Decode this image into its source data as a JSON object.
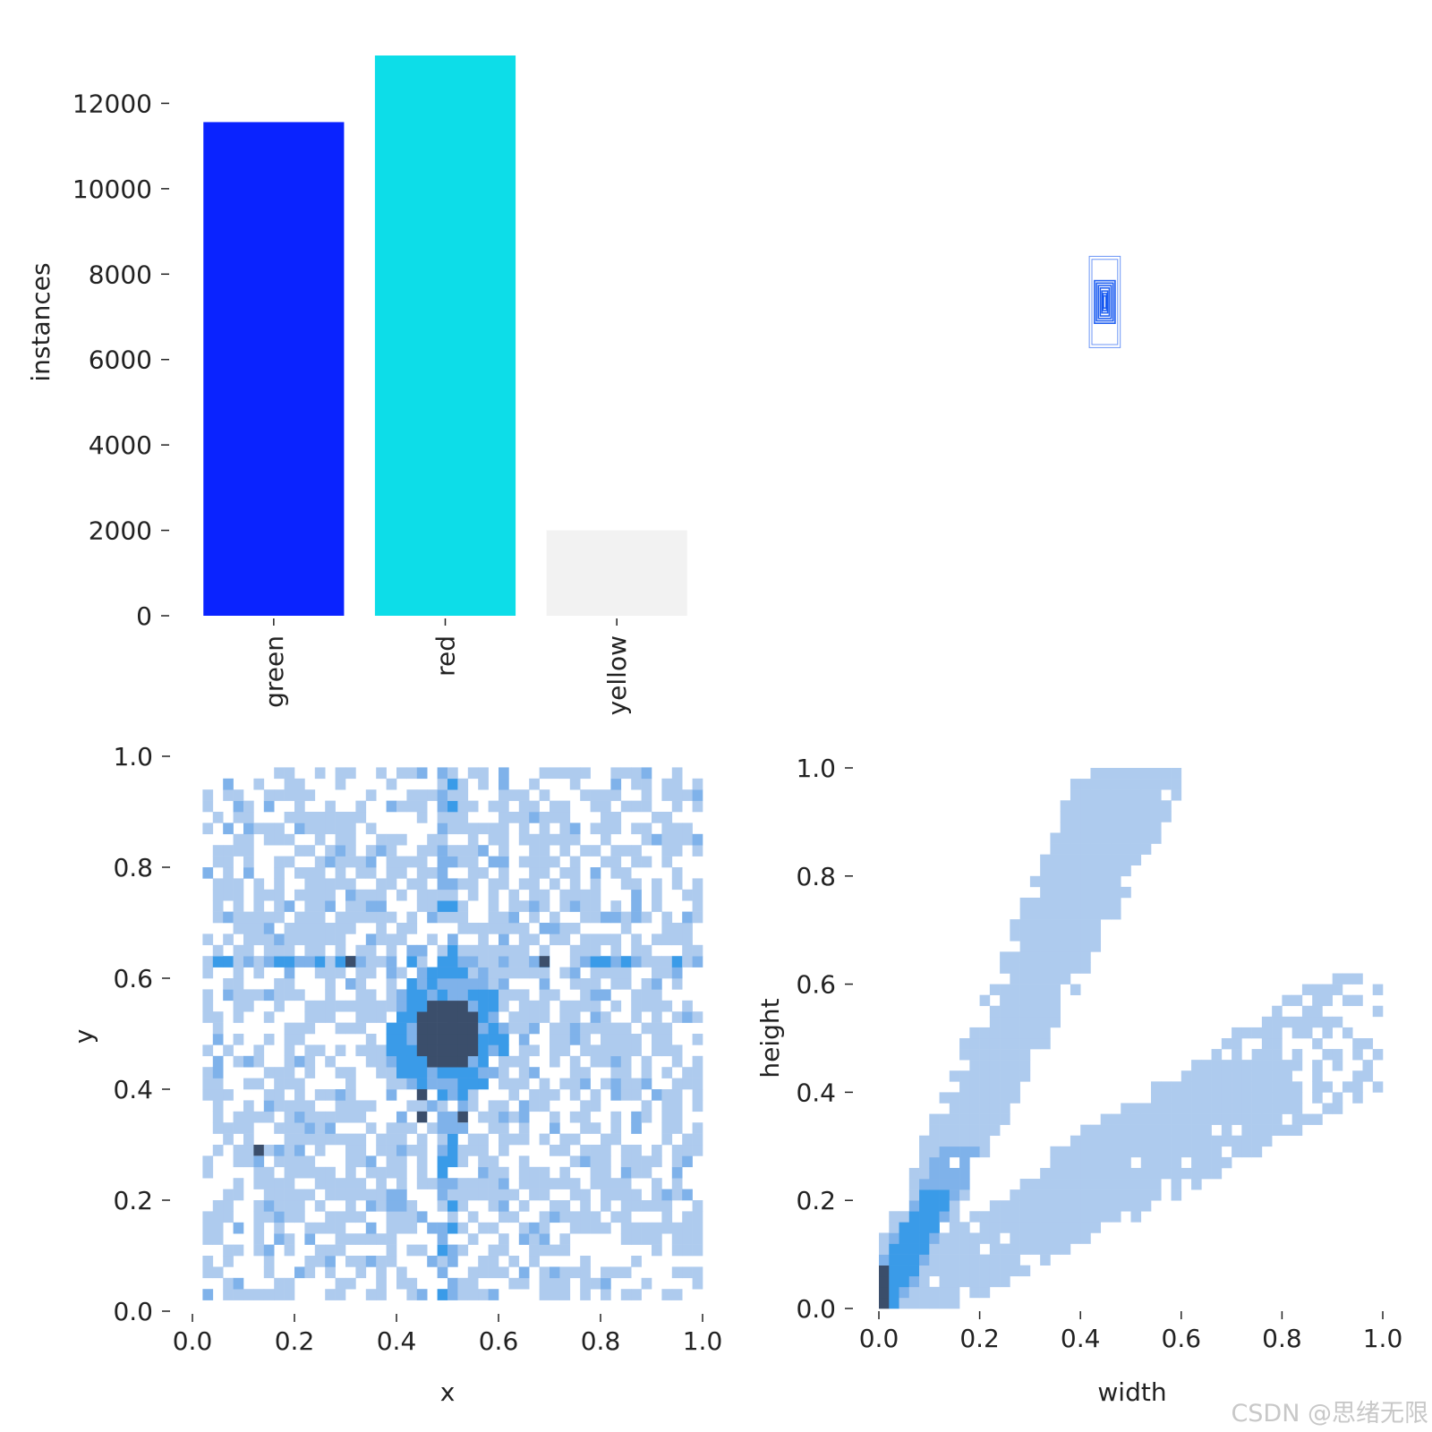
{
  "watermark": "CSDN @思绪无限",
  "chart_data": [
    {
      "type": "bar",
      "categories": [
        "green",
        "red",
        "yellow"
      ],
      "values": [
        11560,
        13120,
        2000
      ],
      "colors": [
        "#0a23ff",
        "#0ddde8",
        "#f2f2f2"
      ],
      "ylabel": "instances",
      "xlabel": "",
      "ylim": [
        0,
        13120
      ],
      "yticks": [
        0,
        2000,
        4000,
        6000,
        8000,
        10000,
        12000
      ],
      "ytick_labels": [
        "0",
        "2000",
        "4000",
        "6000",
        "8000",
        "10000",
        "12000"
      ]
    },
    {
      "type": "boxes",
      "description": "overlaid bounding-box outlines centered on a shared point",
      "boxes": [
        {
          "w": 0.048,
          "h": 0.15
        },
        {
          "w": 0.04,
          "h": 0.14
        },
        {
          "w": 0.032,
          "h": 0.07
        },
        {
          "w": 0.026,
          "h": 0.062
        },
        {
          "w": 0.02,
          "h": 0.054
        },
        {
          "w": 0.014,
          "h": 0.046
        },
        {
          "w": 0.009,
          "h": 0.036
        },
        {
          "w": 0.006,
          "h": 0.028
        },
        {
          "w": 0.004,
          "h": 0.02
        }
      ],
      "color": "#0a50f0"
    },
    {
      "type": "heatmap",
      "xlabel": "x",
      "ylabel": "y",
      "xlim": [
        0,
        1
      ],
      "ylim": [
        0,
        1
      ],
      "xticks": [
        "0.0",
        "0.2",
        "0.4",
        "0.6",
        "0.8",
        "1.0"
      ],
      "yticks": [
        "0.0",
        "0.2",
        "0.4",
        "0.6",
        "0.8",
        "1.0"
      ],
      "bins": 50,
      "description": "2D histogram of box centers, dense block near (0.5, 0.5)",
      "hotspots": [
        {
          "x": 0.5,
          "y": 0.5,
          "level": 3
        },
        {
          "x": 0.68,
          "y": 0.63,
          "level": 3
        },
        {
          "x": 0.3,
          "y": 0.63,
          "level": 3
        },
        {
          "x": 0.13,
          "y": 0.28,
          "level": 3
        },
        {
          "x": 0.45,
          "y": 0.38,
          "level": 3
        },
        {
          "x": 0.45,
          "y": 0.34,
          "level": 3
        },
        {
          "x": 0.53,
          "y": 0.34,
          "level": 3
        }
      ],
      "colors": [
        "#aecbee",
        "#7fb2ea",
        "#3a9be8",
        "#3b4e6b"
      ]
    },
    {
      "type": "heatmap",
      "xlabel": "width",
      "ylabel": "height",
      "xlim": [
        0,
        1
      ],
      "ylim": [
        0,
        1
      ],
      "xticks": [
        "0.0",
        "0.2",
        "0.4",
        "0.6",
        "0.8",
        "1.0"
      ],
      "yticks": [
        "0.0",
        "0.2",
        "0.4",
        "0.6",
        "0.8",
        "1.0"
      ],
      "bins": 50,
      "description": "2D histogram of box sizes, two diagonal bands from origin",
      "bands": [
        {
          "name": "upper",
          "slope": 1.95,
          "spread": 0.1
        },
        {
          "name": "lower",
          "slope": 0.55,
          "spread": 0.08
        }
      ],
      "colors": [
        "#aecbee",
        "#7fb2ea",
        "#3a9be8",
        "#3b4e6b"
      ]
    }
  ]
}
